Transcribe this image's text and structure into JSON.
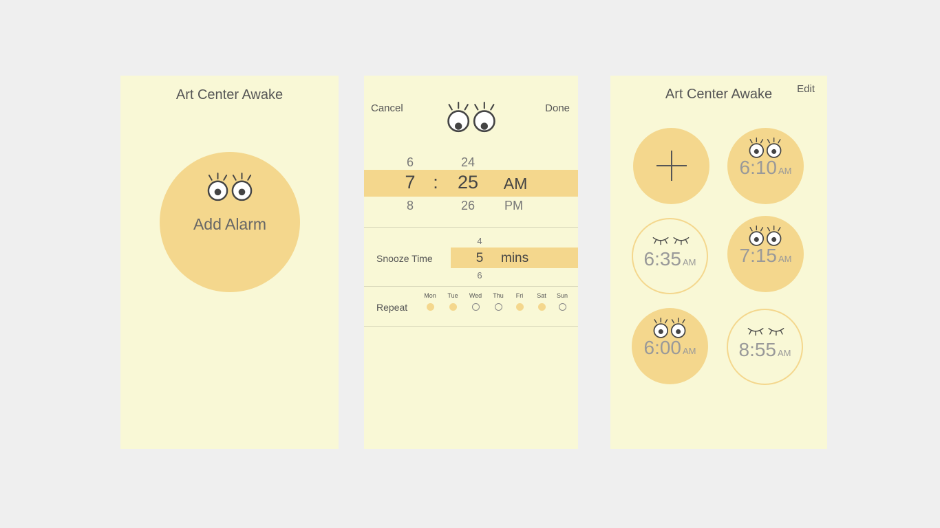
{
  "screen_home": {
    "title": "Art Center Awake",
    "add_label": "Add Alarm"
  },
  "screen_edit": {
    "cancel": "Cancel",
    "done": "Done",
    "picker": {
      "hour_prev": "6",
      "hour": "7",
      "hour_next": "8",
      "separator": ":",
      "minute_prev": "24",
      "minute": "25",
      "minute_next": "26",
      "ampm": "AM",
      "ampm_next": "PM"
    },
    "snooze": {
      "label": "Snooze Time",
      "prev": "4",
      "value": "5",
      "next": "6",
      "unit": "mins"
    },
    "repeat": {
      "label": "Repeat",
      "days": [
        {
          "label": "Mon",
          "on": true
        },
        {
          "label": "Tue",
          "on": true
        },
        {
          "label": "Wed",
          "on": false
        },
        {
          "label": "Thu",
          "on": false
        },
        {
          "label": "Fri",
          "on": true
        },
        {
          "label": "Sat",
          "on": true
        },
        {
          "label": "Sun",
          "on": false
        }
      ]
    }
  },
  "screen_list": {
    "title": "Art Center Awake",
    "edit": "Edit",
    "alarms": [
      {
        "time": "6:10",
        "ampm": "AM",
        "active": true
      },
      {
        "time": "6:35",
        "ampm": "AM",
        "active": false
      },
      {
        "time": "7:15",
        "ampm": "AM",
        "active": true
      },
      {
        "time": "6:00",
        "ampm": "AM",
        "active": true
      },
      {
        "time": "8:55",
        "ampm": "AM",
        "active": false
      }
    ]
  },
  "colors": {
    "screen_bg": "#f9f8d6",
    "accent": "#f4d78d",
    "page_bg": "#efefef",
    "text": "#555555"
  },
  "icons": [
    "open-eyes-icon",
    "closed-eyes-icon",
    "plus-icon"
  ]
}
